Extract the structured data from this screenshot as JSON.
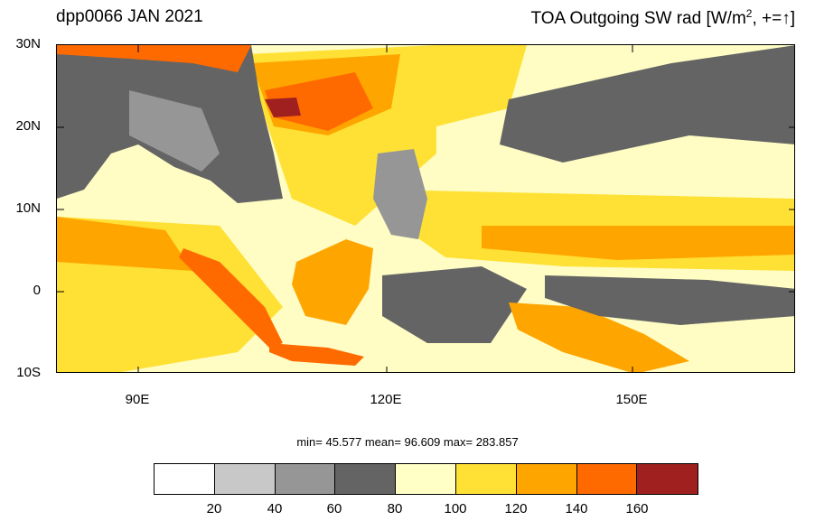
{
  "header": {
    "left_title": "dpp0066 JAN 2021",
    "right_title_main": "TOA Outgoing SW rad [W/m",
    "right_title_sup": "2",
    "right_title_tail": ", +=↑]"
  },
  "axes": {
    "lat_labels": [
      "30N",
      "20N",
      "10N",
      "0",
      "10S"
    ],
    "lon_labels": [
      "90E",
      "120E",
      "150E"
    ]
  },
  "stats": {
    "text": "min=  45.577  mean=  96.609  max= 283.857"
  },
  "colorbar": {
    "colors": [
      "#ffffff",
      "#c8c8c8",
      "#969696",
      "#646464",
      "#ffffc6",
      "#ffe135",
      "#ffa500",
      "#ff6a00",
      "#a02020"
    ],
    "tick_labels": [
      "20",
      "40",
      "60",
      "80",
      "100",
      "120",
      "140",
      "160"
    ]
  },
  "map": {
    "region": {
      "lon_min": 80,
      "lon_max": 170,
      "lat_min": -10,
      "lat_max": 30
    },
    "colors": {
      "land_dark": "#646464",
      "land_mid": "#969696",
      "pale_yellow": "#ffffc6",
      "yellow": "#ffe135",
      "orange": "#ffa500",
      "dark_orange": "#ff6a00",
      "dark_red": "#a02020"
    }
  }
}
